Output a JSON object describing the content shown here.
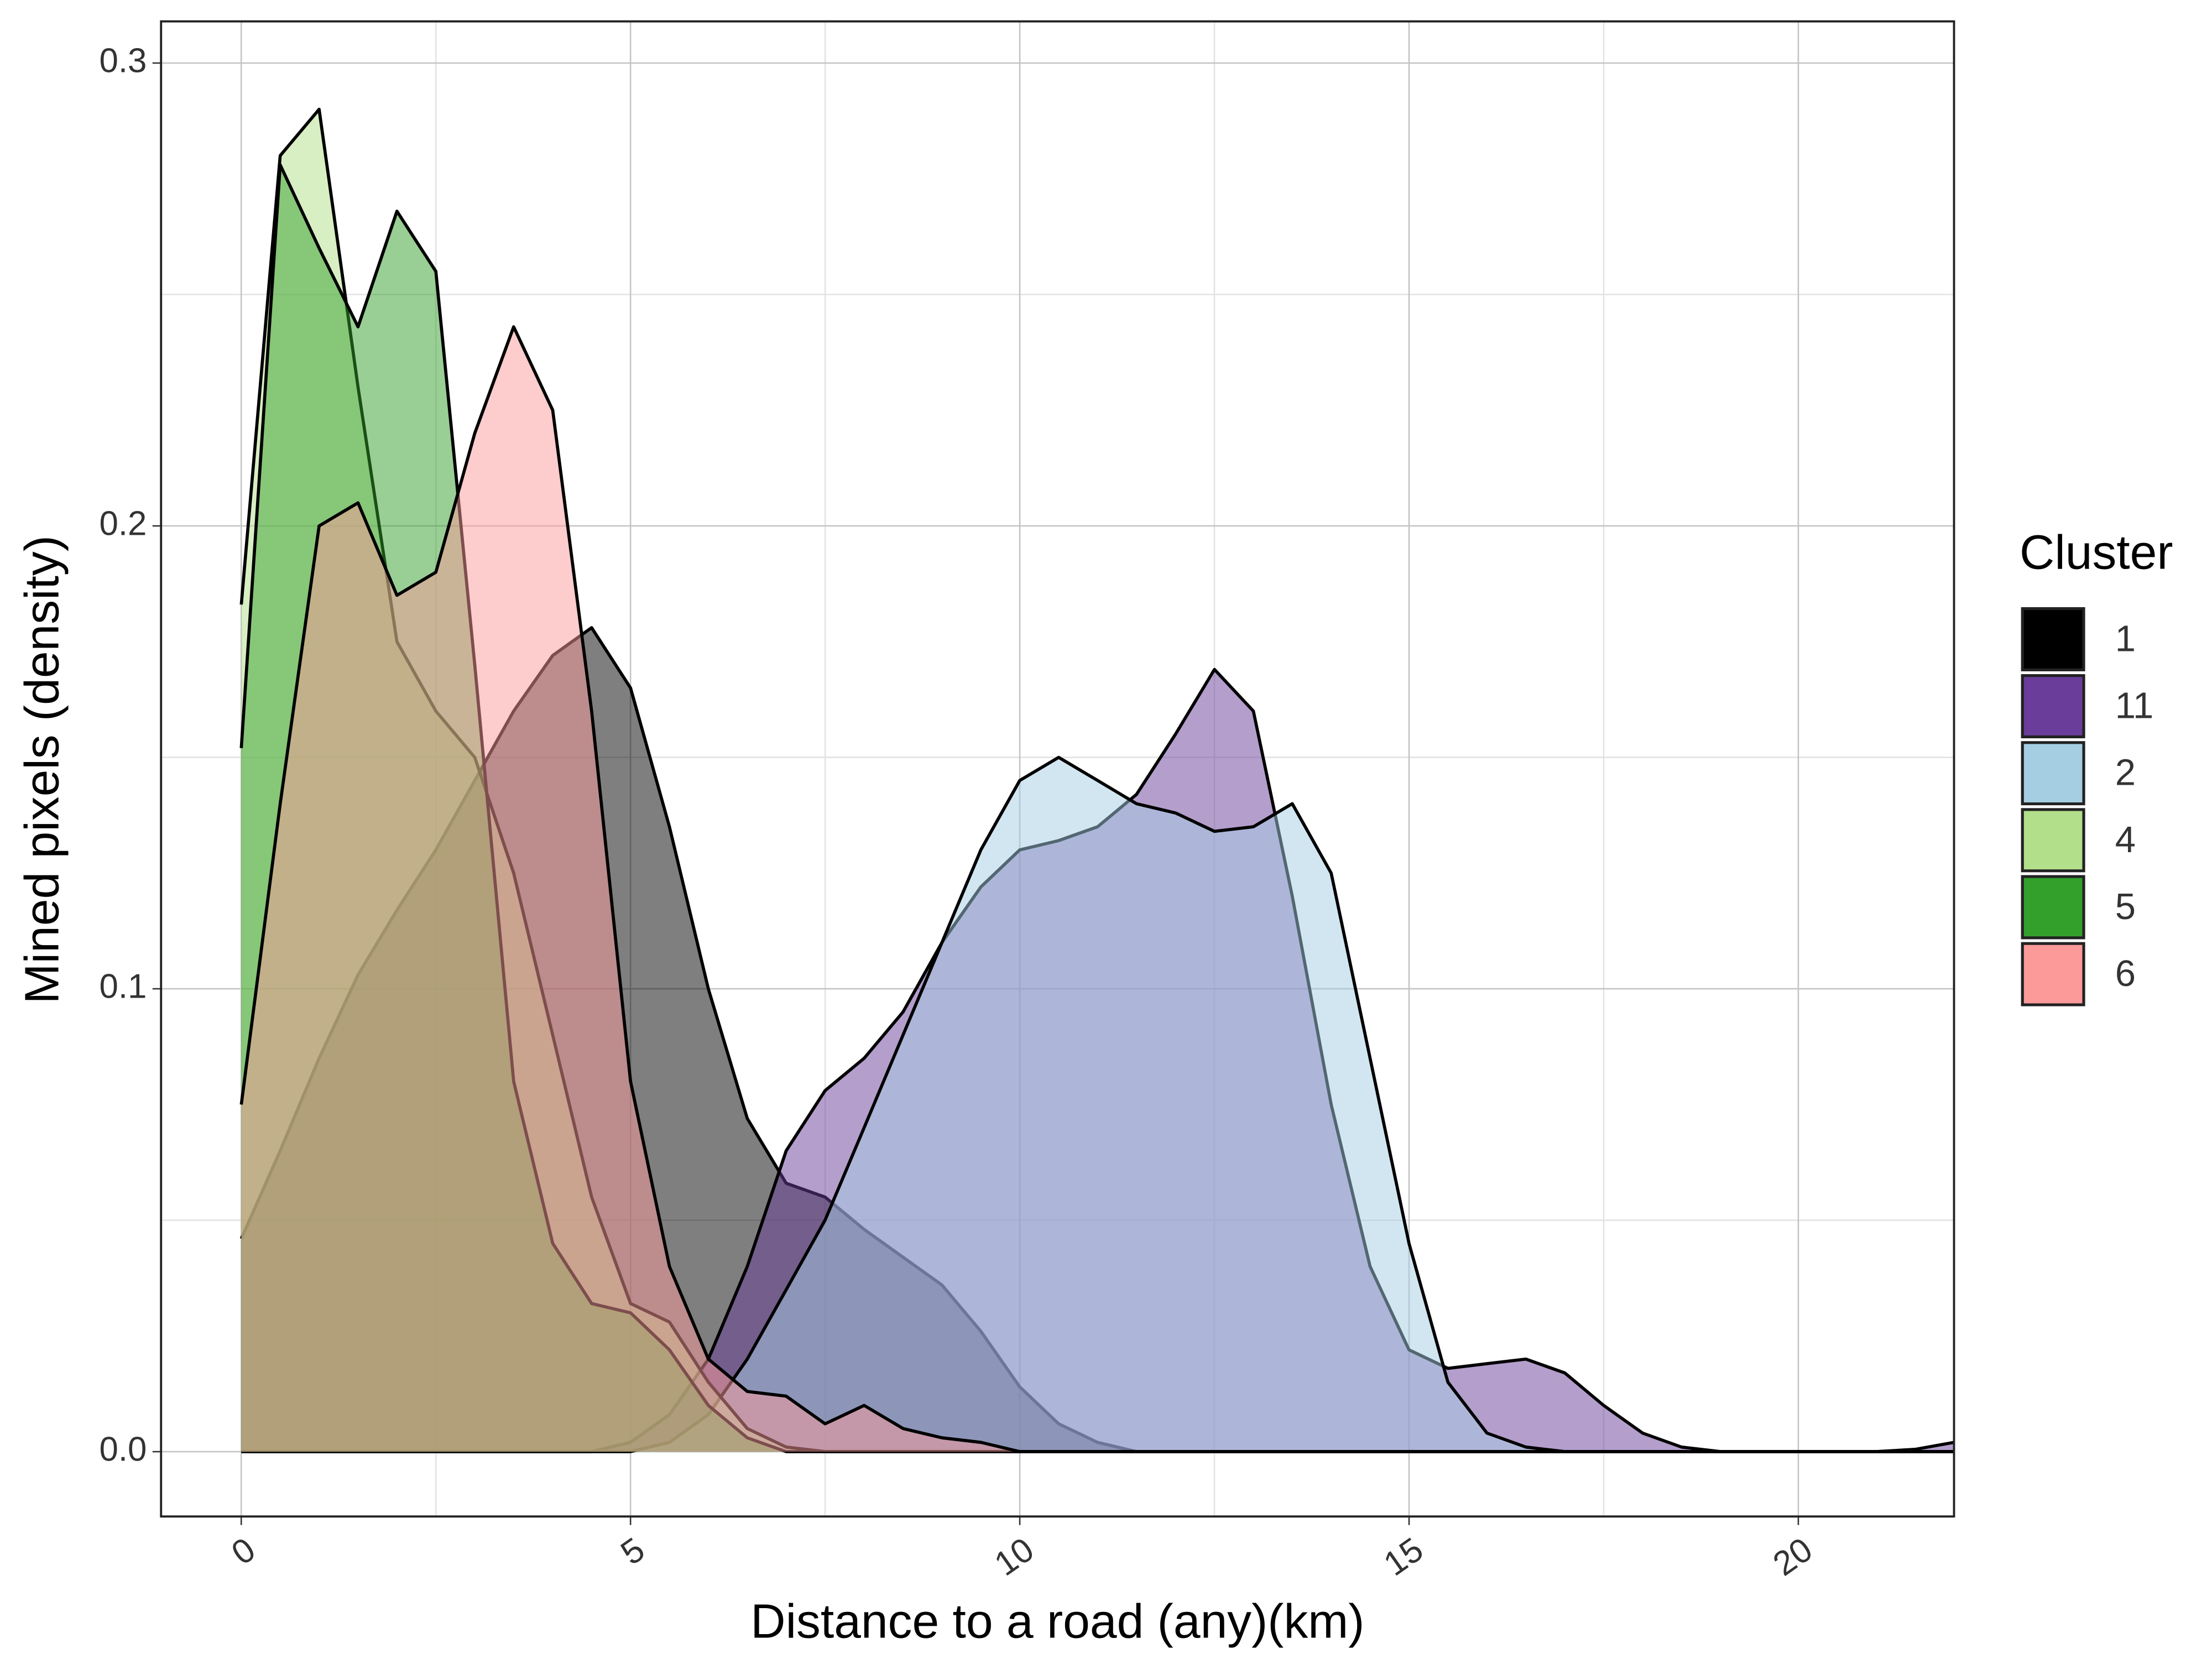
{
  "chart_data": {
    "type": "density",
    "xlabel": "Distance to a road (any)(km)",
    "ylabel": "Mined pixels (density)",
    "legend_title": "Cluster",
    "legend": "right",
    "grid": true,
    "fill_opacity": 0.5,
    "xlim": [
      -1.03,
      22.0
    ],
    "ylim": [
      -0.014,
      0.309
    ],
    "xticks": [
      0,
      5,
      10,
      15,
      20
    ],
    "yticks": [
      {
        "value": 0,
        "label": "0.0"
      },
      0.1,
      0.2,
      0.3
    ],
    "x": [
      0,
      0.5,
      1,
      1.5,
      2,
      2.5,
      3,
      3.5,
      4,
      4.5,
      5,
      5.5,
      6,
      6.5,
      7,
      7.5,
      8,
      8.5,
      9,
      9.5,
      10,
      10.5,
      11,
      11.5,
      12,
      12.5,
      13,
      13.5,
      14,
      14.5,
      15,
      15.5,
      16,
      16.5,
      17,
      17.5,
      18,
      18.5,
      19,
      19.5,
      20,
      20.5,
      21,
      21.5,
      22
    ],
    "series": [
      {
        "name": "1",
        "color": "#000000",
        "values": [
          0.046,
          0.065,
          0.085,
          0.103,
          0.117,
          0.13,
          0.145,
          0.16,
          0.172,
          0.178,
          0.165,
          0.135,
          0.1,
          0.072,
          0.058,
          0.055,
          0.048,
          0.042,
          0.036,
          0.026,
          0.014,
          0.006,
          0.002,
          0,
          0,
          0,
          0,
          0,
          0,
          0,
          0,
          0,
          0,
          0,
          0,
          0,
          0,
          0,
          0,
          0,
          0,
          0,
          0,
          0,
          0
        ]
      },
      {
        "name": "11",
        "color": "#6a3d9a",
        "values": [
          0,
          0,
          0,
          0,
          0,
          0,
          0,
          0,
          0,
          0,
          0.002,
          0.008,
          0.02,
          0.04,
          0.065,
          0.078,
          0.085,
          0.095,
          0.11,
          0.122,
          0.13,
          0.132,
          0.135,
          0.142,
          0.155,
          0.169,
          0.16,
          0.12,
          0.075,
          0.04,
          0.022,
          0.018,
          0.019,
          0.02,
          0.017,
          0.01,
          0.004,
          0.001,
          0,
          0,
          0,
          0,
          0,
          0.0005,
          0.002
        ]
      },
      {
        "name": "2",
        "color": "#a6cee3",
        "values": [
          0,
          0,
          0,
          0,
          0,
          0,
          0,
          0,
          0,
          0,
          0,
          0.002,
          0.008,
          0.02,
          0.035,
          0.05,
          0.07,
          0.09,
          0.11,
          0.13,
          0.145,
          0.15,
          0.145,
          0.14,
          0.138,
          0.134,
          0.135,
          0.14,
          0.125,
          0.085,
          0.045,
          0.015,
          0.004,
          0.001,
          0,
          0,
          0,
          0,
          0,
          0,
          0,
          0,
          0,
          0,
          0
        ]
      },
      {
        "name": "4",
        "color": "#b2df8a",
        "values": [
          0.183,
          0.28,
          0.29,
          0.23,
          0.175,
          0.16,
          0.15,
          0.125,
          0.09,
          0.055,
          0.032,
          0.028,
          0.015,
          0.005,
          0.001,
          0,
          0,
          0,
          0,
          0,
          0,
          0,
          0,
          0,
          0,
          0,
          0,
          0,
          0,
          0,
          0,
          0,
          0,
          0,
          0,
          0,
          0,
          0,
          0,
          0,
          0,
          0,
          0,
          0,
          0
        ]
      },
      {
        "name": "5",
        "color": "#33a02c",
        "values": [
          0.152,
          0.278,
          0.26,
          0.243,
          0.268,
          0.255,
          0.17,
          0.08,
          0.045,
          0.032,
          0.03,
          0.022,
          0.01,
          0.003,
          0,
          0,
          0,
          0,
          0,
          0,
          0,
          0,
          0,
          0,
          0,
          0,
          0,
          0,
          0,
          0,
          0,
          0,
          0,
          0,
          0,
          0,
          0,
          0,
          0,
          0,
          0,
          0,
          0,
          0,
          0
        ]
      },
      {
        "name": "6",
        "color": "#fb9a99",
        "values": [
          0.075,
          0.14,
          0.2,
          0.205,
          0.185,
          0.19,
          0.22,
          0.243,
          0.225,
          0.16,
          0.08,
          0.04,
          0.02,
          0.013,
          0.012,
          0.006,
          0.01,
          0.005,
          0.003,
          0.002,
          0,
          0,
          0,
          0,
          0,
          0,
          0,
          0,
          0,
          0,
          0,
          0,
          0,
          0,
          0,
          0,
          0,
          0,
          0,
          0,
          0,
          0,
          0,
          0,
          0
        ]
      }
    ]
  }
}
